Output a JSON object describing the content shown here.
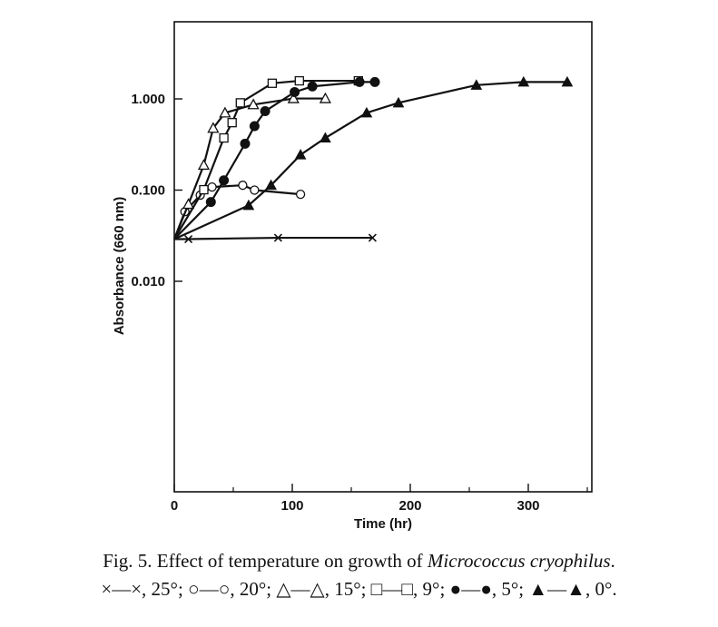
{
  "caption": {
    "line1_prefix": "Fig. 5.   Effect of temperature on growth of ",
    "line1_species": "Micrococcus cryophilus",
    "line1_suffix": ".",
    "legend_line": "×—×, 25°; ○—○, 20°; △—△, 15°; □—□, 9°; ●—●, 5°; ▲—▲, 0°."
  },
  "chart_data": {
    "type": "line",
    "xlabel": "Time (hr)",
    "ylabel": "Absorbance (660 nm)",
    "xlim": [
      0,
      350
    ],
    "ylim": [
      0.006,
      2.5
    ],
    "yscale": "log",
    "xticks": [
      0,
      100,
      200,
      300
    ],
    "xtick_labels": [
      "0",
      "100",
      "200",
      "300"
    ],
    "yticks": [
      0.01,
      0.1,
      1.0
    ],
    "ytick_labels": [
      "0.010",
      "0.100",
      "1.000"
    ],
    "grid": false,
    "series": [
      {
        "name": "25°",
        "marker": "cross",
        "points": [
          [
            0,
            0.029
          ],
          [
            12,
            0.029
          ],
          [
            88,
            0.03
          ],
          [
            168,
            0.03
          ]
        ]
      },
      {
        "name": "20°",
        "marker": "open-circle",
        "points": [
          [
            0,
            0.029
          ],
          [
            9,
            0.058
          ],
          [
            22,
            0.088
          ],
          [
            32,
            0.108
          ],
          [
            58,
            0.113
          ],
          [
            68,
            0.1
          ],
          [
            107,
            0.09
          ]
        ]
      },
      {
        "name": "15°",
        "marker": "open-triangle",
        "points": [
          [
            0,
            0.029
          ],
          [
            12,
            0.07
          ],
          [
            25,
            0.188
          ],
          [
            33,
            0.478
          ],
          [
            43,
            0.703
          ],
          [
            67,
            0.866
          ],
          [
            101,
            1.01
          ],
          [
            128,
            1.01
          ]
        ]
      },
      {
        "name": "9°",
        "marker": "open-square",
        "points": [
          [
            0,
            0.029
          ],
          [
            25,
            0.101
          ],
          [
            42,
            0.373
          ],
          [
            49,
            0.549
          ],
          [
            56,
            0.905
          ],
          [
            83,
            1.484
          ],
          [
            106,
            1.579
          ],
          [
            156,
            1.579
          ]
        ]
      },
      {
        "name": "5°",
        "marker": "filled-circle",
        "points": [
          [
            0,
            0.029
          ],
          [
            31,
            0.074
          ],
          [
            42,
            0.128
          ],
          [
            60,
            0.323
          ],
          [
            68,
            0.503
          ],
          [
            77,
            0.733
          ],
          [
            102,
            1.189
          ],
          [
            117,
            1.371
          ],
          [
            157,
            1.531
          ],
          [
            170,
            1.531
          ]
        ]
      },
      {
        "name": "0°",
        "marker": "filled-triangle",
        "points": [
          [
            0,
            0.029
          ],
          [
            63,
            0.068
          ],
          [
            82,
            0.113
          ],
          [
            107,
            0.244
          ],
          [
            128,
            0.373
          ],
          [
            163,
            0.703
          ],
          [
            190,
            0.905
          ],
          [
            256,
            1.416
          ],
          [
            296,
            1.531
          ],
          [
            333,
            1.531
          ]
        ]
      }
    ]
  }
}
